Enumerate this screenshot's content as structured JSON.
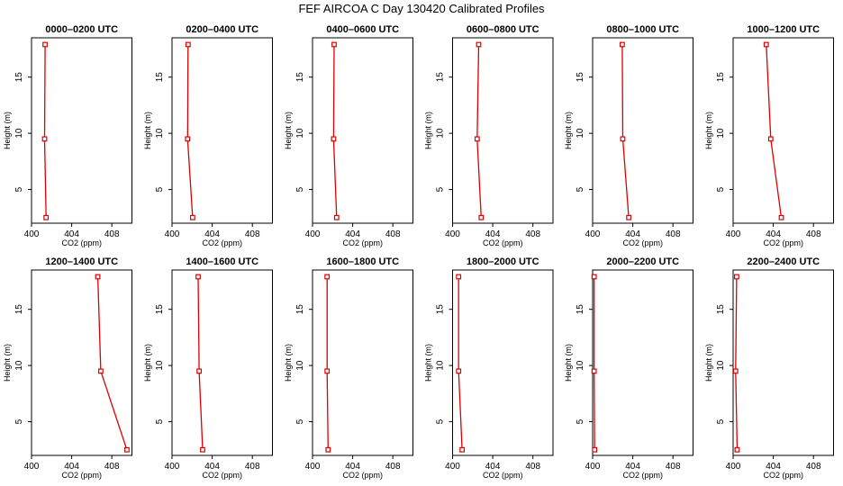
{
  "figure_title": "FEF AIRCOA C  Day 130420  Calibrated Profiles",
  "colors": {
    "line": "#dd0000",
    "axis": "#000000"
  },
  "chart_data": [
    {
      "type": "line",
      "title": "0000–0200 UTC",
      "xlabel": "CO2 (ppm)",
      "ylabel": "Height (m)",
      "xlim": [
        400,
        410
      ],
      "ylim": [
        2,
        18.5
      ],
      "xticks": [
        400,
        404,
        408
      ],
      "yticks": [
        5,
        10,
        15
      ],
      "points": [
        {
          "x": 401.35,
          "y": 17.9
        },
        {
          "x": 401.3,
          "y": 9.5
        },
        {
          "x": 401.45,
          "y": 2.5
        }
      ]
    },
    {
      "type": "line",
      "title": "0200–0400 UTC",
      "xlabel": "CO2 (ppm)",
      "ylabel": "Height (m)",
      "xlim": [
        400,
        410
      ],
      "ylim": [
        2,
        18.5
      ],
      "xticks": [
        400,
        404,
        408
      ],
      "yticks": [
        5,
        10,
        15
      ],
      "points": [
        {
          "x": 401.6,
          "y": 17.9
        },
        {
          "x": 401.55,
          "y": 9.5
        },
        {
          "x": 402.05,
          "y": 2.5
        }
      ]
    },
    {
      "type": "line",
      "title": "0400–0600 UTC",
      "xlabel": "CO2 (ppm)",
      "ylabel": "Height (m)",
      "xlim": [
        400,
        410
      ],
      "ylim": [
        2,
        18.5
      ],
      "xticks": [
        400,
        404,
        408
      ],
      "yticks": [
        5,
        10,
        15
      ],
      "points": [
        {
          "x": 402.15,
          "y": 17.9
        },
        {
          "x": 402.1,
          "y": 9.5
        },
        {
          "x": 402.4,
          "y": 2.5
        }
      ]
    },
    {
      "type": "line",
      "title": "0600–0800 UTC",
      "xlabel": "CO2 (ppm)",
      "ylabel": "Height (m)",
      "xlim": [
        400,
        410
      ],
      "ylim": [
        2,
        18.5
      ],
      "xticks": [
        400,
        404,
        408
      ],
      "yticks": [
        5,
        10,
        15
      ],
      "points": [
        {
          "x": 402.6,
          "y": 17.9
        },
        {
          "x": 402.45,
          "y": 9.5
        },
        {
          "x": 402.85,
          "y": 2.5
        }
      ]
    },
    {
      "type": "line",
      "title": "0800–1000 UTC",
      "xlabel": "CO2 (ppm)",
      "ylabel": "Height (m)",
      "xlim": [
        400,
        410
      ],
      "ylim": [
        2,
        18.5
      ],
      "xticks": [
        400,
        404,
        408
      ],
      "yticks": [
        5,
        10,
        15
      ],
      "points": [
        {
          "x": 402.95,
          "y": 17.9
        },
        {
          "x": 403.0,
          "y": 9.5
        },
        {
          "x": 403.6,
          "y": 2.5
        }
      ]
    },
    {
      "type": "line",
      "title": "1000–1200 UTC",
      "xlabel": "CO2 (ppm)",
      "ylabel": "Height (m)",
      "xlim": [
        400,
        410
      ],
      "ylim": [
        2,
        18.5
      ],
      "xticks": [
        400,
        404,
        408
      ],
      "yticks": [
        5,
        10,
        15
      ],
      "points": [
        {
          "x": 403.3,
          "y": 17.9
        },
        {
          "x": 403.75,
          "y": 9.5
        },
        {
          "x": 404.8,
          "y": 2.5
        }
      ]
    },
    {
      "type": "line",
      "title": "1200–1400 UTC",
      "xlabel": "CO2 (ppm)",
      "ylabel": "Height (m)",
      "xlim": [
        400,
        410
      ],
      "ylim": [
        2,
        18.5
      ],
      "xticks": [
        400,
        404,
        408
      ],
      "yticks": [
        5,
        10,
        15
      ],
      "points": [
        {
          "x": 406.6,
          "y": 17.9
        },
        {
          "x": 406.9,
          "y": 9.5
        },
        {
          "x": 409.5,
          "y": 2.5
        }
      ]
    },
    {
      "type": "line",
      "title": "1400–1600 UTC",
      "xlabel": "CO2 (ppm)",
      "ylabel": "Height (m)",
      "xlim": [
        400,
        410
      ],
      "ylim": [
        2,
        18.5
      ],
      "xticks": [
        400,
        404,
        408
      ],
      "yticks": [
        5,
        10,
        15
      ],
      "points": [
        {
          "x": 402.6,
          "y": 17.9
        },
        {
          "x": 402.7,
          "y": 9.5
        },
        {
          "x": 403.05,
          "y": 2.5
        }
      ]
    },
    {
      "type": "line",
      "title": "1600–1800 UTC",
      "xlabel": "CO2 (ppm)",
      "ylabel": "Height (m)",
      "xlim": [
        400,
        410
      ],
      "ylim": [
        2,
        18.5
      ],
      "xticks": [
        400,
        404,
        408
      ],
      "yticks": [
        5,
        10,
        15
      ],
      "points": [
        {
          "x": 401.45,
          "y": 17.9
        },
        {
          "x": 401.45,
          "y": 9.5
        },
        {
          "x": 401.55,
          "y": 2.5
        }
      ]
    },
    {
      "type": "line",
      "title": "1800–2000 UTC",
      "xlabel": "CO2 (ppm)",
      "ylabel": "Height (m)",
      "xlim": [
        400,
        410
      ],
      "ylim": [
        2,
        18.5
      ],
      "xticks": [
        400,
        404,
        408
      ],
      "yticks": [
        5,
        10,
        15
      ],
      "points": [
        {
          "x": 400.6,
          "y": 17.9
        },
        {
          "x": 400.6,
          "y": 9.5
        },
        {
          "x": 400.95,
          "y": 2.5
        }
      ]
    },
    {
      "type": "line",
      "title": "2000–2200 UTC",
      "xlabel": "CO2 (ppm)",
      "ylabel": "Height (m)",
      "xlim": [
        400,
        410
      ],
      "ylim": [
        2,
        18.5
      ],
      "xticks": [
        400,
        404,
        408
      ],
      "yticks": [
        5,
        10,
        15
      ],
      "points": [
        {
          "x": 400.15,
          "y": 17.9
        },
        {
          "x": 400.15,
          "y": 9.5
        },
        {
          "x": 400.2,
          "y": 2.5
        }
      ]
    },
    {
      "type": "line",
      "title": "2200–2400 UTC",
      "xlabel": "CO2 (ppm)",
      "ylabel": "Height (m)",
      "xlim": [
        400,
        410
      ],
      "ylim": [
        2,
        18.5
      ],
      "xticks": [
        400,
        404,
        408
      ],
      "yticks": [
        5,
        10,
        15
      ],
      "points": [
        {
          "x": 400.35,
          "y": 17.9
        },
        {
          "x": 400.25,
          "y": 9.5
        },
        {
          "x": 400.4,
          "y": 2.5
        }
      ]
    }
  ]
}
